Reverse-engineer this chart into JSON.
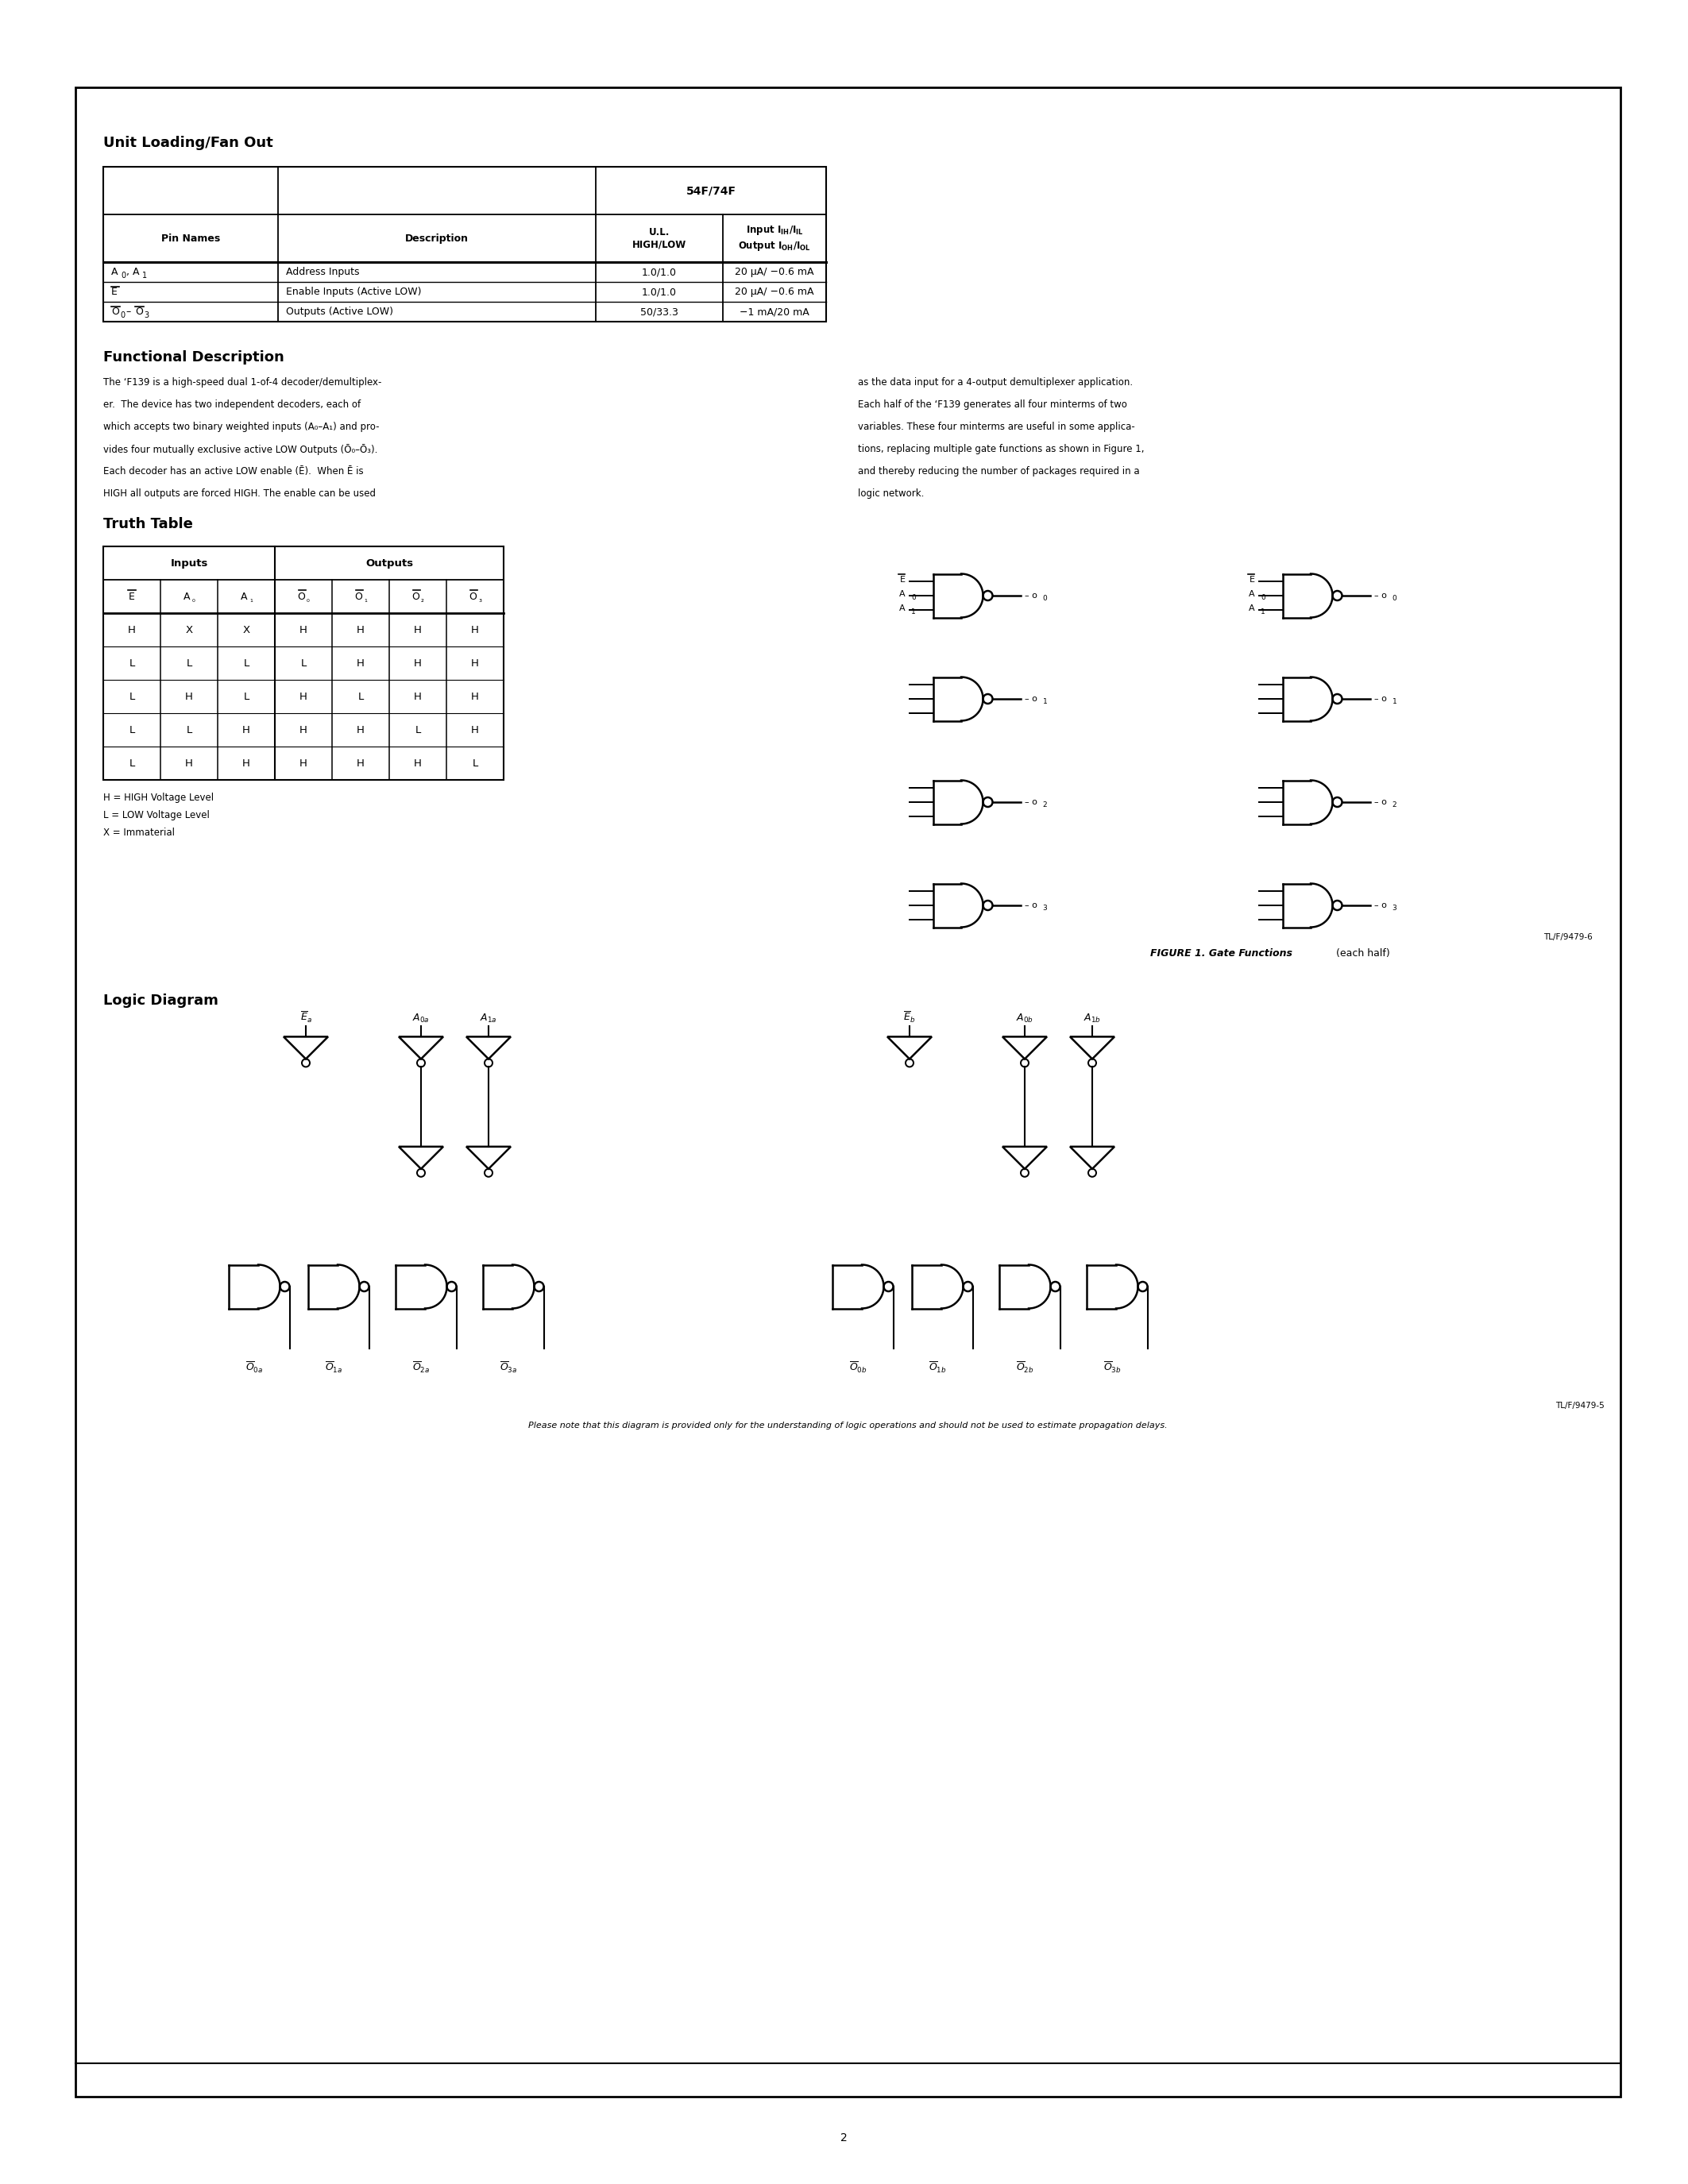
{
  "page_bg": "#ffffff",
  "section1_title": "Unit Loading/Fan Out",
  "section2_title": "Functional Description",
  "section3_title": "Truth Table",
  "section4_title": "Logic Diagram",
  "figure_caption_bold": "FIGURE 1. Gate Functions",
  "figure_caption_normal": " (each half)",
  "figure_ref": "TL/F/9479-6",
  "logic_ref": "TL/F/9479-5",
  "page_number": "2",
  "disclaimer": "Please note that this diagram is provided only for the understanding of logic operations and should not be used to estimate propagation delays.",
  "truth_table_rows": [
    [
      "H",
      "X",
      "X",
      "H",
      "H",
      "H",
      "H"
    ],
    [
      "L",
      "L",
      "L",
      "L",
      "H",
      "H",
      "H"
    ],
    [
      "L",
      "H",
      "L",
      "H",
      "L",
      "H",
      "H"
    ],
    [
      "L",
      "L",
      "H",
      "H",
      "H",
      "L",
      "H"
    ],
    [
      "L",
      "H",
      "H",
      "H",
      "H",
      "H",
      "L"
    ]
  ],
  "truth_table_legend": [
    "H = HIGH Voltage Level",
    "L = LOW Voltage Level",
    "X = Immaterial"
  ],
  "table1_rows_ul": [
    "1.0/1.0",
    "1.0/1.0",
    "50/33.3"
  ],
  "table1_rows_io": [
    "20 μA/ −0.6 mA",
    "20 μA/ −0.6 mA",
    "−1 mA/20 mA"
  ],
  "table1_rows_desc": [
    "Address Inputs",
    "Enable Inputs (Active LOW)",
    "Outputs (Active LOW)"
  ]
}
